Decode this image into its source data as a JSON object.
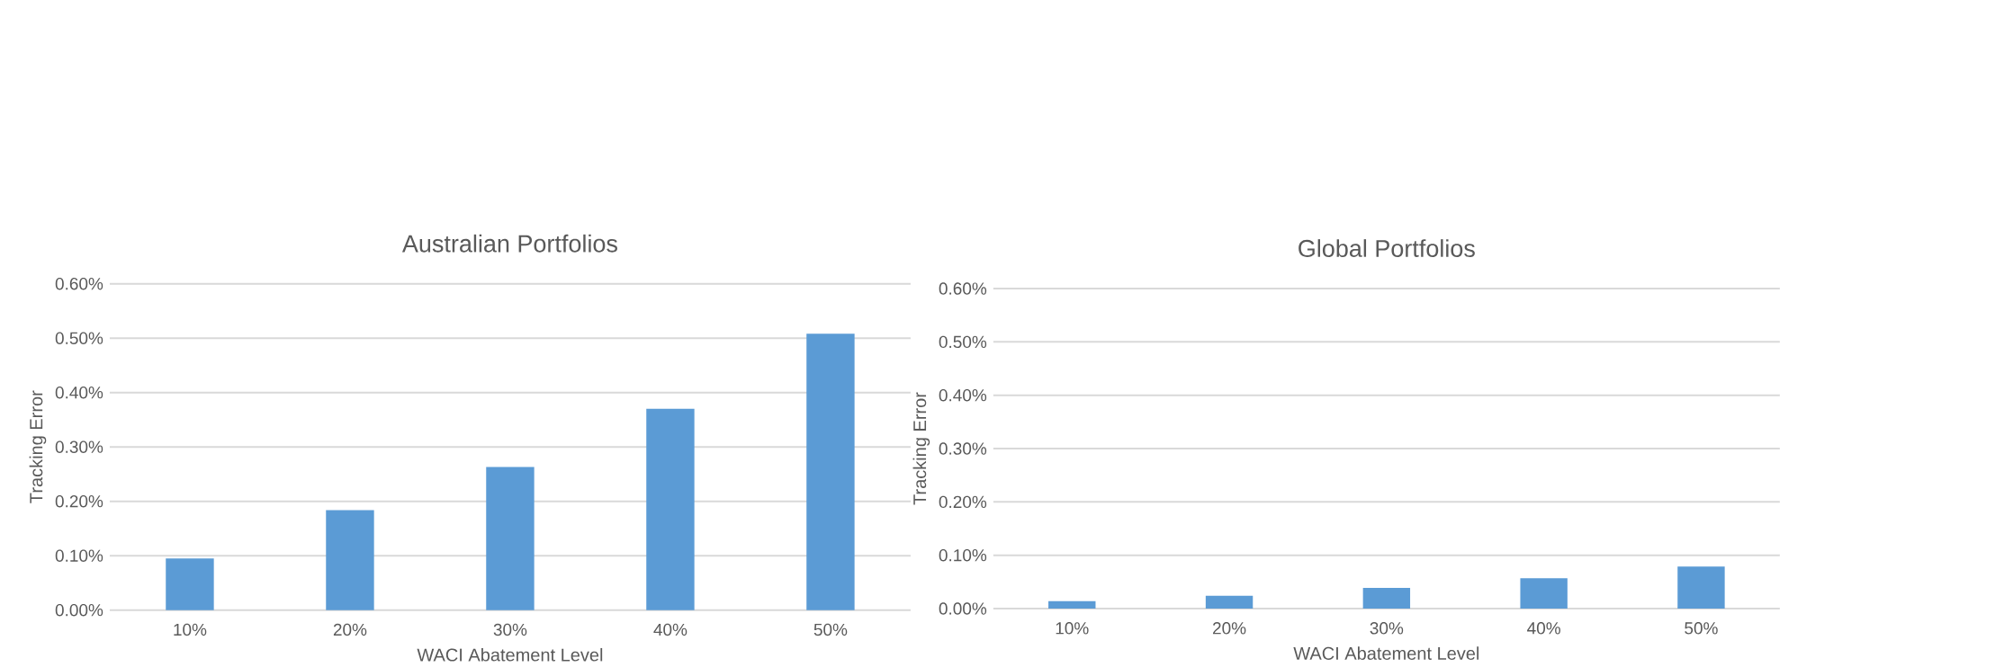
{
  "chart_data": [
    {
      "type": "bar",
      "title": "Australian Portfolios",
      "xlabel": "WACI Abatement Level",
      "ylabel": "Tracking Error",
      "categories": [
        "10%",
        "20%",
        "30%",
        "40%",
        "50%"
      ],
      "values": [
        0.095,
        0.184,
        0.263,
        0.37,
        0.508
      ],
      "color": "#5b9bd5",
      "ylim": [
        0,
        0.6
      ],
      "yticks": [
        {
          "value": 0,
          "label": "0.00%"
        },
        {
          "value": 0.1,
          "label": "0.10%"
        },
        {
          "value": 0.2,
          "label": "0.20%"
        },
        {
          "value": 0.3,
          "label": "0.30%"
        },
        {
          "value": 0.4,
          "label": "0.40%"
        },
        {
          "value": 0.5,
          "label": "0.50%"
        },
        {
          "value": 0.6,
          "label": "0.60%"
        }
      ],
      "grid": "y"
    },
    {
      "type": "bar",
      "title": "Global Portfolios",
      "xlabel": "WACI Abatement Level",
      "ylabel": "Tracking Error",
      "categories": [
        "10%",
        "20%",
        "30%",
        "40%",
        "50%"
      ],
      "values": [
        0.014,
        0.024,
        0.039,
        0.057,
        0.079
      ],
      "color": "#5b9bd5",
      "ylim": [
        0,
        0.6
      ],
      "yticks": [
        {
          "value": 0,
          "label": "0.00%"
        },
        {
          "value": 0.1,
          "label": "0.10%"
        },
        {
          "value": 0.2,
          "label": "0.20%"
        },
        {
          "value": 0.3,
          "label": "0.30%"
        },
        {
          "value": 0.4,
          "label": "0.40%"
        },
        {
          "value": 0.5,
          "label": "0.50%"
        },
        {
          "value": 0.6,
          "label": "0.60%"
        }
      ],
      "grid": "y"
    }
  ]
}
